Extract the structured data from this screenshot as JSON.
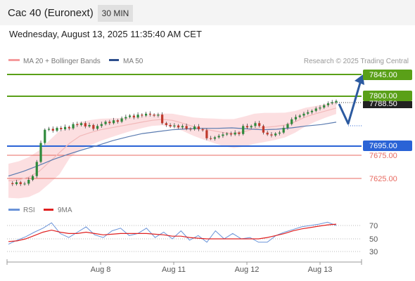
{
  "header": {
    "title": "Cac 40 (Euronext)",
    "timeframe": "30 MIN"
  },
  "datetime": "Wednesday, August 13, 2025 11:35:40 AM CET",
  "legend": {
    "ma20": "MA 20 + Bollinger Bands",
    "ma50": "MA 50",
    "credit": "Research © 2025 Trading Central",
    "rsi": "RSI",
    "ma9": "9MA"
  },
  "colors": {
    "green": "#5aa018",
    "blue": "#2a63d6",
    "red": "#e86a60",
    "bollinger": "#fbd9dc",
    "ma20": "#f2b9ba",
    "ma50": "#5a7bb0",
    "rsi": "#6a93d8",
    "ma9": "#e02020",
    "candle_up": "#2f8a3c",
    "candle_down": "#c0392b"
  },
  "levels": {
    "r2": {
      "label": "7845.00",
      "value": 7845
    },
    "r1": {
      "label": "7800.00",
      "value": 7800
    },
    "current": {
      "label": "7788.50",
      "value": 7788.5
    },
    "pivot": {
      "label": "7695.00",
      "value": 7695
    },
    "s1": {
      "label": "7675.00",
      "value": 7675
    },
    "s2": {
      "label": "7625.00",
      "value": 7625
    }
  },
  "rsi_axis": [
    "70",
    "50",
    "30"
  ],
  "x_axis": [
    "Aug 8",
    "Aug 11",
    "Aug 12",
    "Aug 13"
  ],
  "chart_data": {
    "type": "line",
    "title": "Cac 40 (Euronext)",
    "price_range": [
      7600,
      7860
    ],
    "series": [
      {
        "name": "Price",
        "values": [
          7615,
          7613,
          7617,
          7613,
          7614,
          7622,
          7630,
          7660,
          7700,
          7728,
          7730,
          7726,
          7732,
          7729,
          7734,
          7731,
          7740,
          7738,
          7742,
          7735,
          7738,
          7730,
          7736,
          7740,
          7745,
          7742,
          7748,
          7745,
          7752,
          7755,
          7758,
          7754,
          7760,
          7758,
          7762,
          7760,
          7758,
          7760,
          7742,
          7738,
          7735,
          7737,
          7733,
          7736,
          7730,
          7729,
          7735,
          7729,
          7727,
          7710,
          7709,
          7712,
          7715,
          7718,
          7720,
          7718,
          7722,
          7719,
          7736,
          7733,
          7736,
          7742,
          7736,
          7722,
          7718,
          7716,
          7720,
          7722,
          7732,
          7740,
          7750,
          7755,
          7758,
          7762,
          7765,
          7768,
          7773,
          7775,
          7780,
          7784,
          7786,
          7789
        ]
      },
      {
        "name": "MA 20",
        "values": [
          7620,
          7622,
          7628,
          7640,
          7660,
          7680,
          7700,
          7715,
          7722,
          7728,
          7732,
          7736,
          7740,
          7744,
          7748,
          7750,
          7748,
          7742,
          7735,
          7730,
          7726,
          7722,
          7720,
          7724,
          7730,
          7733,
          7735,
          7738,
          7745,
          7755,
          7762,
          7768,
          7774
        ]
      },
      {
        "name": "MA 50",
        "values": [
          7630,
          7640,
          7652,
          7665,
          7676,
          7686,
          7695,
          7705,
          7713,
          7720,
          7724,
          7728,
          7730,
          7731,
          7731,
          7732,
          7730,
          7728,
          7729,
          7732,
          7736,
          7739,
          7744
        ]
      },
      {
        "name": "RSI",
        "values": [
          42,
          48,
          53,
          60,
          66,
          74,
          58,
          52,
          60,
          68,
          56,
          52,
          62,
          66,
          55,
          58,
          66,
          52,
          60,
          50,
          62,
          48,
          55,
          45,
          62,
          50,
          58,
          50,
          52,
          45,
          45,
          55,
          60,
          64,
          68,
          70,
          72,
          75,
          70
        ]
      },
      {
        "name": "9MA",
        "values": [
          46,
          47,
          50,
          55,
          60,
          63,
          60,
          58,
          58,
          60,
          58,
          56,
          57,
          58,
          58,
          58,
          58,
          57,
          56,
          54,
          54,
          52,
          51,
          50,
          50,
          50,
          50,
          50,
          50,
          50,
          52,
          55,
          58,
          62,
          65,
          67,
          69,
          71,
          72
        ]
      }
    ]
  }
}
